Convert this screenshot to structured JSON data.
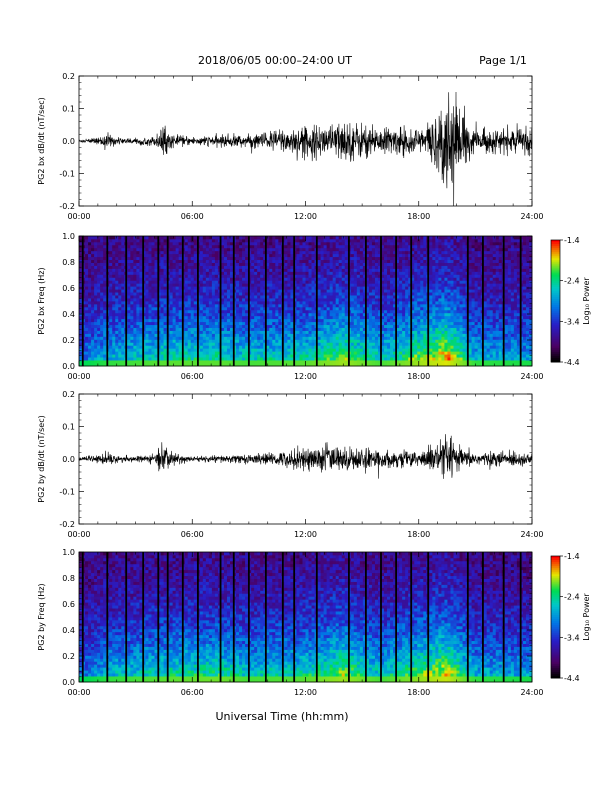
{
  "header": {
    "title": "2018/06/05  00:00–24:00 UT",
    "page": "Page 1/1"
  },
  "xlabel": "Universal Time (hh:mm)",
  "chart_data": [
    {
      "type": "line",
      "ylabel": "PG2 bx dB/dt (nT/sec)",
      "x_ticks": [
        "00:00",
        "06:00",
        "12:00",
        "18:00",
        "24:00"
      ],
      "y_ticks": [
        "0.2",
        "0.1",
        "0.0",
        "-0.1",
        "-0.2"
      ],
      "xlim": [
        0,
        24
      ],
      "ylim": [
        -0.2,
        0.2
      ],
      "x": [
        0,
        1,
        1.5,
        2,
        3,
        4,
        4.5,
        5,
        6,
        7,
        8,
        9,
        10,
        11,
        12,
        13,
        14,
        15,
        16,
        17,
        18,
        19,
        19.6,
        20,
        20.5,
        21,
        22,
        23,
        24
      ],
      "envelope": [
        0.004,
        0.012,
        0.03,
        0.012,
        0.01,
        0.018,
        0.055,
        0.02,
        0.016,
        0.018,
        0.025,
        0.022,
        0.035,
        0.05,
        0.055,
        0.06,
        0.075,
        0.065,
        0.05,
        0.05,
        0.045,
        0.1,
        0.2,
        0.16,
        0.07,
        0.045,
        0.04,
        0.045,
        0.05
      ]
    },
    {
      "type": "heatmap",
      "ylabel": "PG2 bx Freq (Hz)",
      "x_ticks": [
        "00:00",
        "06:00",
        "12:00",
        "18:00",
        "24:00"
      ],
      "y_ticks": [
        "1.0",
        "0.8",
        "0.6",
        "0.4",
        "0.2",
        "0.0"
      ],
      "xlim": [
        0,
        24
      ],
      "ylim": [
        0,
        1.0
      ],
      "colorbar": {
        "label": "Log₁₀ Power",
        "ticks": [
          "-1.4",
          "-2.4",
          "-3.4",
          "-4.4"
        ],
        "range": [
          -4.4,
          -1.4
        ]
      },
      "gap_times": [
        0.2,
        1.5,
        2.5,
        3.4,
        4.2,
        4.7,
        5.5,
        6.3,
        7.5,
        8.2,
        9.0,
        9.9,
        10.8,
        11.4,
        12.6,
        14.3,
        15.2,
        16.0,
        16.8,
        17.6,
        18.5,
        20.6,
        21.4,
        22.5,
        23.4
      ],
      "activity": {
        "x": [
          0,
          1.5,
          4.5,
          7.5,
          9,
          12,
          14,
          16,
          19.5,
          21,
          24
        ],
        "v": [
          0.35,
          0.5,
          0.6,
          0.6,
          0.55,
          0.6,
          0.75,
          0.55,
          0.9,
          0.5,
          0.45
        ]
      }
    },
    {
      "type": "line",
      "ylabel": "PG2 by dB/dt (nT/sec)",
      "x_ticks": [
        "00:00",
        "06:00",
        "12:00",
        "18:00",
        "24:00"
      ],
      "y_ticks": [
        "0.2",
        "0.1",
        "0.0",
        "-0.1",
        "-0.2"
      ],
      "xlim": [
        0,
        24
      ],
      "ylim": [
        -0.2,
        0.2
      ],
      "x": [
        0,
        1,
        1.5,
        2,
        3,
        4,
        4.5,
        5,
        6,
        7,
        8,
        9,
        10,
        11,
        12,
        13,
        14,
        15,
        16,
        17,
        18,
        19,
        19.6,
        20,
        20.5,
        21,
        22,
        23,
        24
      ],
      "envelope": [
        0.004,
        0.012,
        0.03,
        0.012,
        0.01,
        0.018,
        0.06,
        0.02,
        0.01,
        0.012,
        0.015,
        0.018,
        0.02,
        0.03,
        0.045,
        0.05,
        0.045,
        0.04,
        0.03,
        0.03,
        0.03,
        0.06,
        0.07,
        0.05,
        0.03,
        0.025,
        0.025,
        0.03,
        0.02
      ]
    },
    {
      "type": "heatmap",
      "ylabel": "PG2 by Freq (Hz)",
      "x_ticks": [
        "00:00",
        "06:00",
        "12:00",
        "18:00",
        "24:00"
      ],
      "y_ticks": [
        "1.0",
        "0.8",
        "0.6",
        "0.4",
        "0.2",
        "0.0"
      ],
      "xlim": [
        0,
        24
      ],
      "ylim": [
        0,
        1.0
      ],
      "colorbar": {
        "label": "Log₁₀ Power",
        "ticks": [
          "-1.4",
          "-2.4",
          "-3.4",
          "-4.4"
        ],
        "range": [
          -4.4,
          -1.4
        ]
      },
      "gap_times": [
        0.2,
        1.5,
        2.5,
        3.4,
        4.2,
        4.7,
        5.5,
        6.3,
        7.5,
        8.2,
        9.0,
        9.9,
        10.8,
        11.4,
        12.6,
        14.3,
        15.2,
        16.0,
        16.8,
        17.6,
        18.5,
        20.6,
        21.4,
        22.5,
        23.4
      ],
      "activity": {
        "x": [
          0,
          1.5,
          4.5,
          7.5,
          9,
          12,
          14,
          16,
          19.5,
          21,
          24
        ],
        "v": [
          0.35,
          0.5,
          0.6,
          0.65,
          0.55,
          0.6,
          0.75,
          0.55,
          0.85,
          0.5,
          0.45
        ]
      }
    }
  ]
}
